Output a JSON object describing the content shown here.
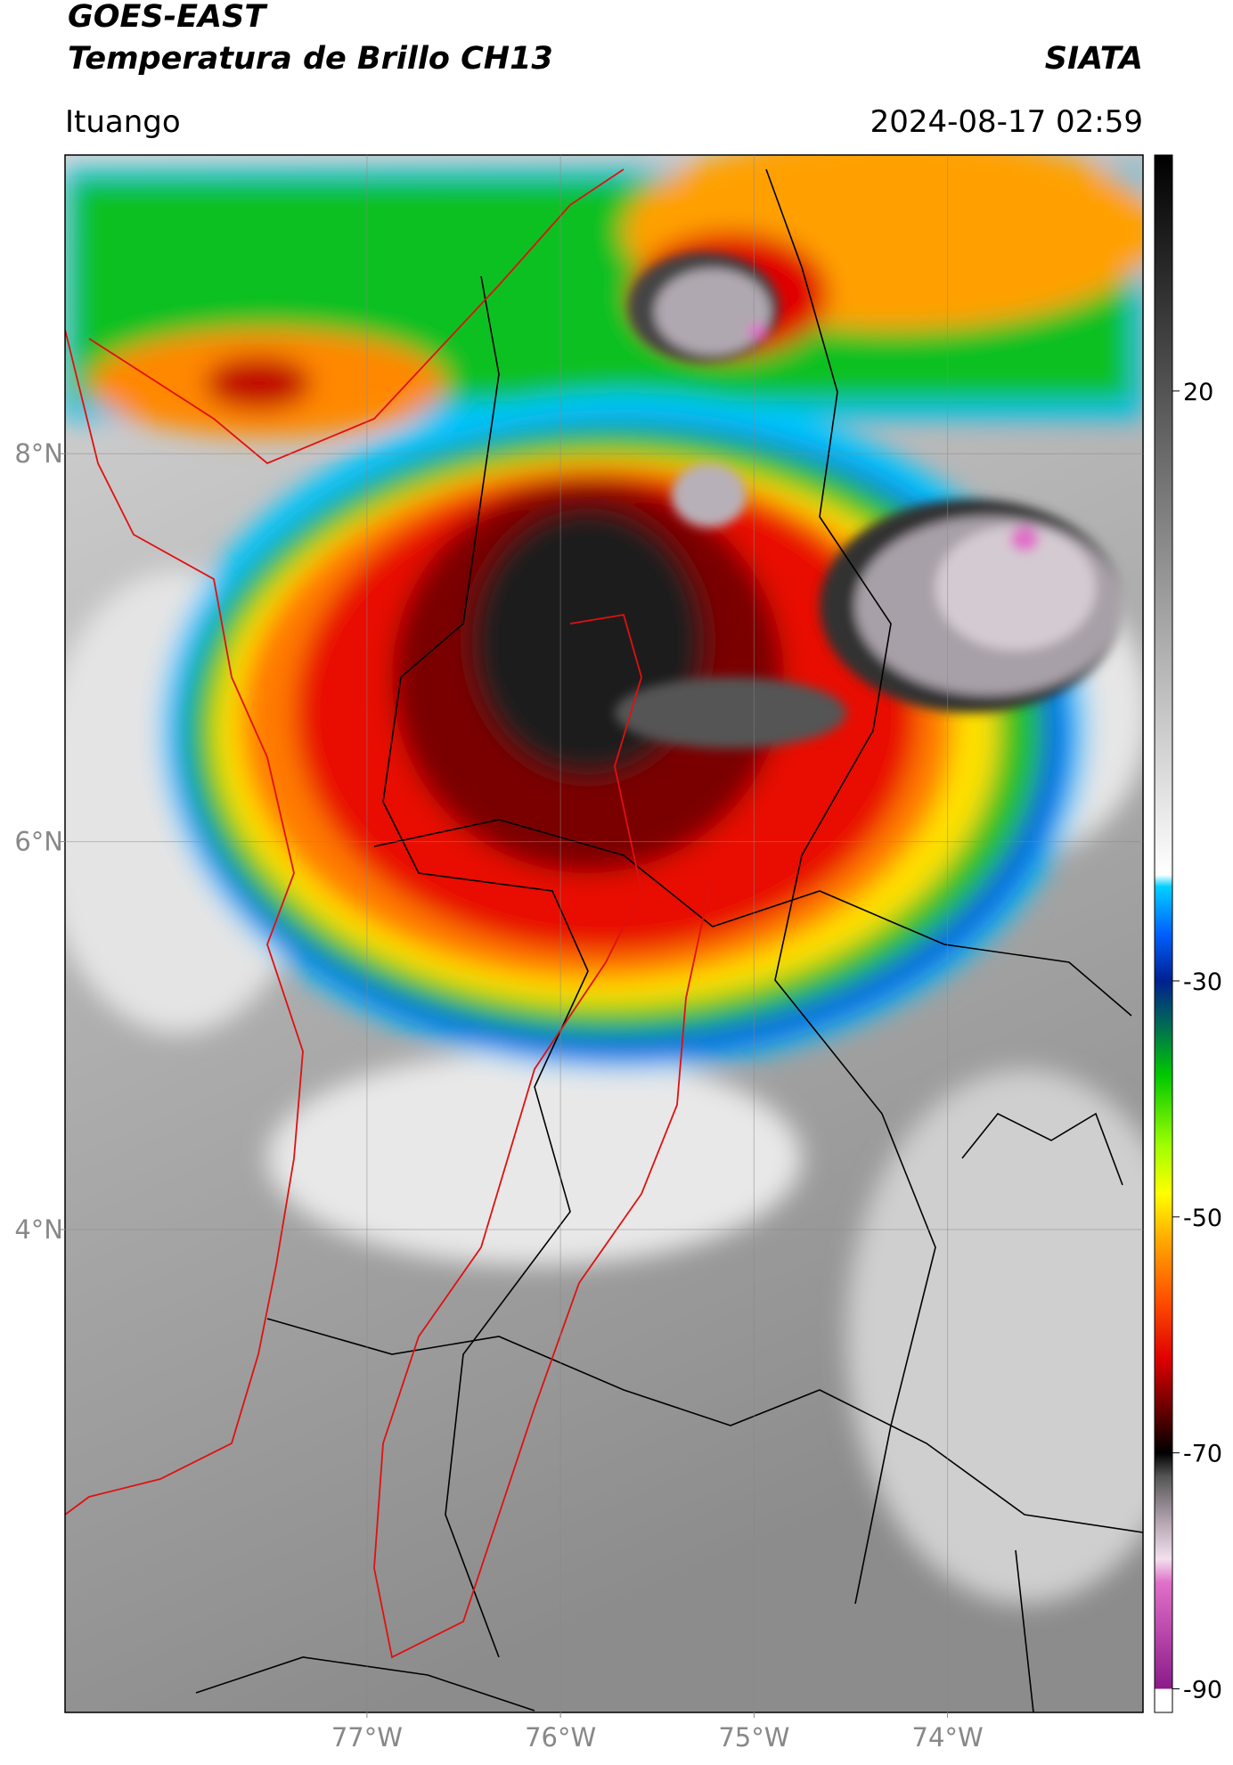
{
  "header": {
    "title": "GOES-EAST",
    "subtitle": "Temperatura de Brillo CH13",
    "source": "SIATA",
    "location": "Ituango",
    "datetime": "2024-08-17 02:59"
  },
  "map": {
    "xlim": [
      -78.56,
      -72.99
    ],
    "ylim": [
      1.51,
      9.54
    ],
    "grid": true,
    "xticks": [
      {
        "value": -77,
        "label": "77°W"
      },
      {
        "value": -76,
        "label": "76°W"
      },
      {
        "value": -75,
        "label": "75°W"
      },
      {
        "value": -74,
        "label": "74°W"
      }
    ],
    "yticks": [
      {
        "value": 4,
        "label": "4°N"
      },
      {
        "value": 6,
        "label": "6°N"
      },
      {
        "value": 8,
        "label": "8°N"
      }
    ]
  },
  "colorbar": {
    "clim": [
      -92,
      40
    ],
    "ticks": [
      -90,
      -70,
      -50,
      -30,
      20
    ],
    "colormap": [
      {
        "value": -92,
        "color": "#ffffff"
      },
      {
        "value": -90,
        "color": "#ffffff"
      },
      {
        "value": -90,
        "color": "#8a1a8a"
      },
      {
        "value": -81,
        "color": "#e070c8"
      },
      {
        "value": -79,
        "color": "#f2e0ee"
      },
      {
        "value": -76,
        "color": "#b8a8b4"
      },
      {
        "value": -72,
        "color": "#555555"
      },
      {
        "value": -70,
        "color": "#000000"
      },
      {
        "value": -66,
        "color": "#700000"
      },
      {
        "value": -62,
        "color": "#e00000"
      },
      {
        "value": -57,
        "color": "#ff5000"
      },
      {
        "value": -52,
        "color": "#ffa800"
      },
      {
        "value": -48,
        "color": "#ffff00"
      },
      {
        "value": -44,
        "color": "#a0ff00"
      },
      {
        "value": -38,
        "color": "#00c800"
      },
      {
        "value": -34,
        "color": "#007050"
      },
      {
        "value": -30,
        "color": "#002090"
      },
      {
        "value": -26,
        "color": "#0060ff"
      },
      {
        "value": -22,
        "color": "#00d0ff"
      },
      {
        "value": -21,
        "color": "#ffffff"
      },
      {
        "value": 40,
        "color": "#000000"
      }
    ]
  }
}
